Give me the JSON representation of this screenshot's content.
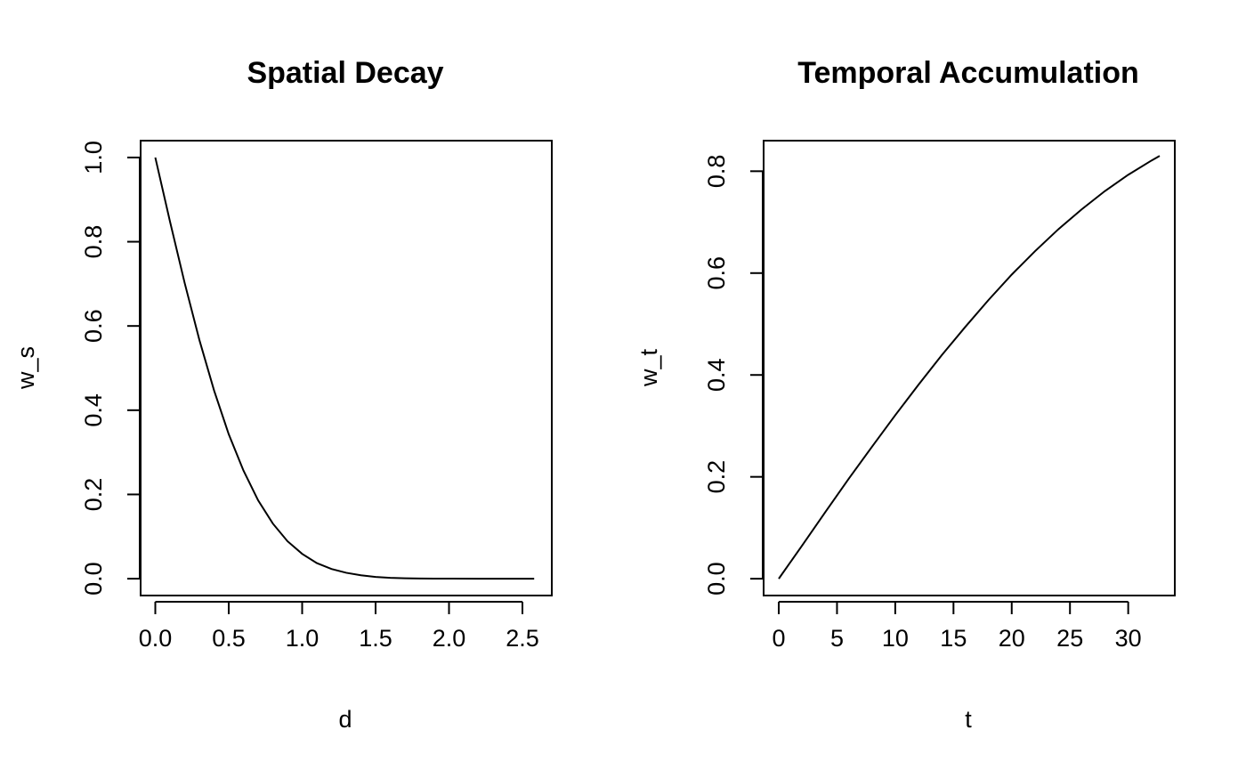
{
  "chart_data": [
    {
      "type": "line",
      "title": "Spatial Decay",
      "xlabel": "d",
      "ylabel": "w_s",
      "xlim": [
        -0.1,
        2.7
      ],
      "ylim": [
        -0.04,
        1.04
      ],
      "xticks": [
        0.0,
        0.5,
        1.0,
        1.5,
        2.0,
        2.5
      ],
      "xtick_labels": [
        "0.0",
        "0.5",
        "1.0",
        "1.5",
        "2.0",
        "2.5"
      ],
      "yticks": [
        0.0,
        0.2,
        0.4,
        0.6,
        0.8,
        1.0
      ],
      "ytick_labels": [
        "0.0",
        "0.2",
        "0.4",
        "0.6",
        "0.8",
        "1.0"
      ],
      "grid": false,
      "series": [
        {
          "x": [
            0.0,
            0.1,
            0.2,
            0.3,
            0.4,
            0.5,
            0.6,
            0.7,
            0.8,
            0.9,
            1.0,
            1.1,
            1.2,
            1.3,
            1.4,
            1.5,
            1.6,
            1.7,
            1.8,
            1.9,
            2.0,
            2.2,
            2.4,
            2.58
          ],
          "y": [
            1.0,
            0.848,
            0.702,
            0.567,
            0.447,
            0.343,
            0.257,
            0.186,
            0.131,
            0.089,
            0.059,
            0.037,
            0.023,
            0.014,
            0.008,
            0.004,
            0.002,
            0.001,
            0.0005,
            0.0002,
            0.0001,
            0.0,
            0.0,
            0.0
          ]
        }
      ]
    },
    {
      "type": "line",
      "title": "Temporal Accumulation",
      "xlabel": "t",
      "ylabel": "w_t",
      "xlim": [
        -1.3,
        34.0
      ],
      "ylim": [
        -0.033,
        0.86
      ],
      "xticks": [
        0,
        5,
        10,
        15,
        20,
        25,
        30
      ],
      "xtick_labels": [
        "0",
        "5",
        "10",
        "15",
        "20",
        "25",
        "30"
      ],
      "yticks": [
        0.0,
        0.2,
        0.4,
        0.6,
        0.8
      ],
      "ytick_labels": [
        "0.0",
        "0.2",
        "0.4",
        "0.6",
        "0.8"
      ],
      "grid": false,
      "series": [
        {
          "x": [
            0,
            2,
            4,
            6,
            8,
            10,
            12,
            14,
            16,
            18,
            20,
            22,
            24,
            26,
            28,
            30,
            32,
            32.7
          ],
          "y": [
            0.0,
            0.065,
            0.131,
            0.196,
            0.259,
            0.321,
            0.381,
            0.439,
            0.494,
            0.547,
            0.597,
            0.643,
            0.686,
            0.725,
            0.761,
            0.793,
            0.821,
            0.83
          ]
        }
      ]
    }
  ]
}
